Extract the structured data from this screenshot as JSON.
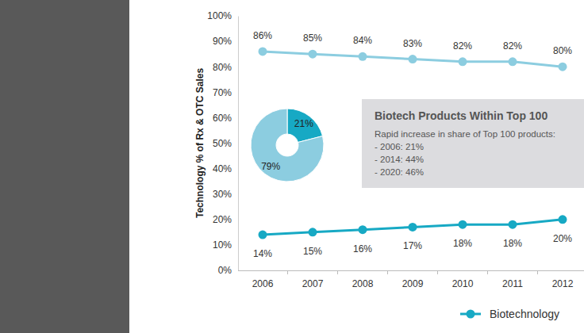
{
  "chart_data": [
    {
      "type": "line",
      "ylabel": "Technology % of Rx & OTC Sales",
      "categories": [
        "2006",
        "2007",
        "2008",
        "2009",
        "2010",
        "2011",
        "2012"
      ],
      "series": [
        {
          "color": "#8ccde0",
          "values": [
            86,
            85,
            84,
            83,
            82,
            82,
            80
          ],
          "value_labels": [
            "86%",
            "85%",
            "84%",
            "83%",
            "82%",
            "82%",
            "80%"
          ]
        },
        {
          "name": "Biotechnology",
          "color": "#17a9c4",
          "values": [
            14,
            15,
            16,
            17,
            18,
            18,
            20
          ],
          "value_labels": [
            "14%",
            "15%",
            "16%",
            "17%",
            "18%",
            "18%",
            "20%"
          ]
        }
      ],
      "ylim": [
        0,
        100
      ],
      "yticks": [
        {
          "value": 0,
          "label": "0%"
        },
        {
          "value": 10,
          "label": "10%"
        },
        {
          "value": 20,
          "label": "20%"
        },
        {
          "value": 30,
          "label": "30%"
        },
        {
          "value": 40,
          "label": "40%"
        },
        {
          "value": 50,
          "label": "50%"
        },
        {
          "value": 60,
          "label": "60%"
        },
        {
          "value": 70,
          "label": "70%"
        },
        {
          "value": 80,
          "label": "80%"
        },
        {
          "value": 90,
          "label": "90%"
        },
        {
          "value": 100,
          "label": "100%"
        }
      ],
      "data_labels": true,
      "marker": "circle",
      "legend": "bottom"
    },
    {
      "type": "pie",
      "title": "Biotech Products Within Top 100",
      "subtitle": "Rapid increase in share of Top 100 products:",
      "annotations": [
        "- 2006: 21%",
        "- 2014: 44%",
        "- 2020: 46%"
      ],
      "values": [
        21,
        79
      ],
      "value_labels": [
        "21%",
        "79%"
      ],
      "colors": [
        "#17a9c4",
        "#8ccde0"
      ],
      "data_labels": true
    }
  ]
}
